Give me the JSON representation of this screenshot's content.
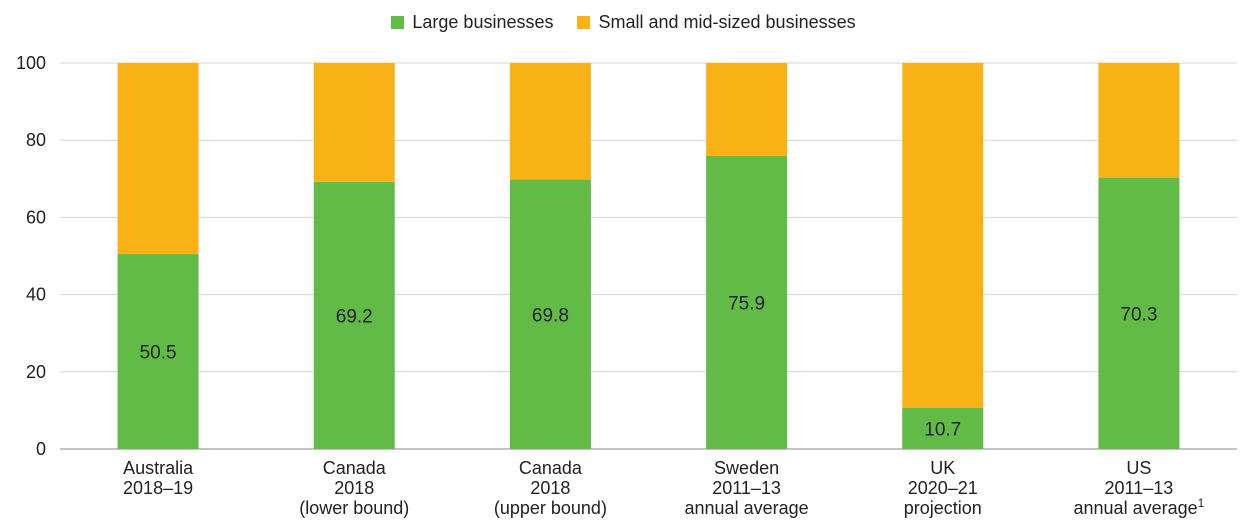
{
  "chart_data": {
    "type": "bar",
    "stacked": true,
    "categories": [
      [
        "Australia",
        "2018–19"
      ],
      [
        "Canada",
        "2018",
        "(lower bound)"
      ],
      [
        "Canada",
        "2018",
        "(upper bound)"
      ],
      [
        "Sweden",
        "2011–13",
        "annual average"
      ],
      [
        "UK",
        "2020–21",
        "projection"
      ],
      [
        "US",
        "2011–13",
        "annual average"
      ]
    ],
    "category_superscripts": [
      "",
      "",
      "",
      "",
      "",
      "1"
    ],
    "series": [
      {
        "name": "Large businesses",
        "values": [
          50.5,
          69.2,
          69.8,
          75.9,
          10.7,
          70.3
        ],
        "color": "#62bb46"
      },
      {
        "name": "Small and mid-sized businesses",
        "values": [
          49.5,
          30.8,
          30.2,
          24.1,
          89.3,
          29.7
        ],
        "color": "#f9b216"
      }
    ],
    "data_labels": [
      "50.5",
      "69.2",
      "69.8",
      "75.9",
      "10.7",
      "70.3"
    ],
    "ylim": [
      0,
      100
    ],
    "yticks": [
      0,
      20,
      40,
      60,
      80,
      100
    ],
    "grid": true,
    "legend_position": "top-center",
    "title": "",
    "xlabel": "",
    "ylabel": ""
  }
}
